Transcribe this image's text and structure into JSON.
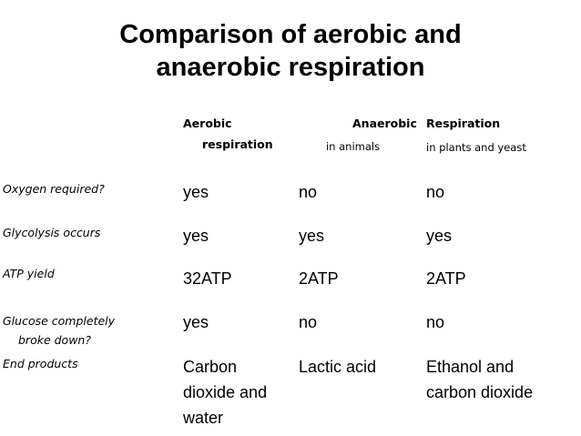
{
  "title": {
    "line1": "Comparison of aerobic and",
    "line2": "anaerobic respiration"
  },
  "header": {
    "aerobic_line1": "Aerobic",
    "aerobic_line2": "respiration",
    "anaerobic": "Anaerobic",
    "respiration": "Respiration",
    "in_animals": "in animals",
    "in_plants_yeast": "in plants and yeast"
  },
  "rows": [
    {
      "label": "Oxygen required?",
      "aerobic": "yes",
      "animals": "no",
      "plants": "no"
    },
    {
      "label": "Glycolysis occurs",
      "aerobic": "yes",
      "animals": "yes",
      "plants": "yes"
    },
    {
      "label": "ATP yield",
      "aerobic": "32ATP",
      "animals": "2ATP",
      "plants": "2ATP"
    },
    {
      "label_line1": "Glucose completely",
      "label_line2": "broke down?",
      "aerobic": "yes",
      "animals": "no",
      "plants": "no"
    },
    {
      "label": "End products",
      "aerobic_line1": "Carbon",
      "aerobic_line2": "dioxide and",
      "aerobic_line3": "water",
      "animals": "Lactic acid",
      "plants_line1": "Ethanol and",
      "plants_line2": "carbon dioxide"
    }
  ]
}
